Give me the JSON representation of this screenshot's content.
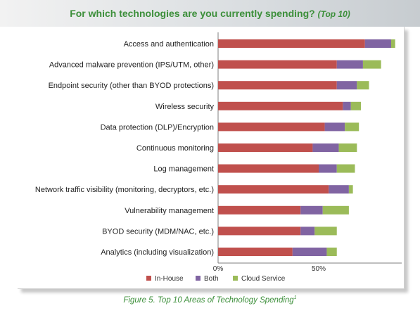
{
  "header": {
    "title_main": "For which technologies are you currently spending?",
    "title_sub": "(Top 10)"
  },
  "caption": {
    "text": "Figure 5. Top 10 Areas of Technology Spending",
    "footnote": "1"
  },
  "chart_data": {
    "type": "bar",
    "orientation": "horizontal",
    "stacked": true,
    "categories": [
      "Access and authentication",
      "Advanced malware prevention (IPS/UTM, other)",
      "Endpoint security (other than BYOD protections)",
      "Wireless security",
      "Data protection (DLP)/Encryption",
      "Continuous monitoring",
      "Log management",
      "Network traffic visibility (monitoring, decryptors, etc.)",
      "Vulnerability management",
      "BYOD security (MDM/NAC, etc.)",
      "Analytics (including visualization)"
    ],
    "series": [
      {
        "name": "In-House",
        "color": "#c0504d",
        "values": [
          73,
          59,
          59,
          62,
          53,
          47,
          50,
          55,
          41,
          41,
          37
        ]
      },
      {
        "name": "Both",
        "color": "#8064a2",
        "values": [
          13,
          13,
          10,
          4,
          10,
          13,
          9,
          10,
          11,
          7,
          17
        ]
      },
      {
        "name": "Cloud Service",
        "color": "#9bbb59",
        "values": [
          2,
          9,
          6,
          5,
          7,
          9,
          9,
          2,
          13,
          11,
          5
        ]
      }
    ],
    "xlim": [
      0,
      100
    ],
    "xticks": [
      "0%",
      "50%"
    ],
    "grid": false,
    "legend_position": "bottom"
  }
}
